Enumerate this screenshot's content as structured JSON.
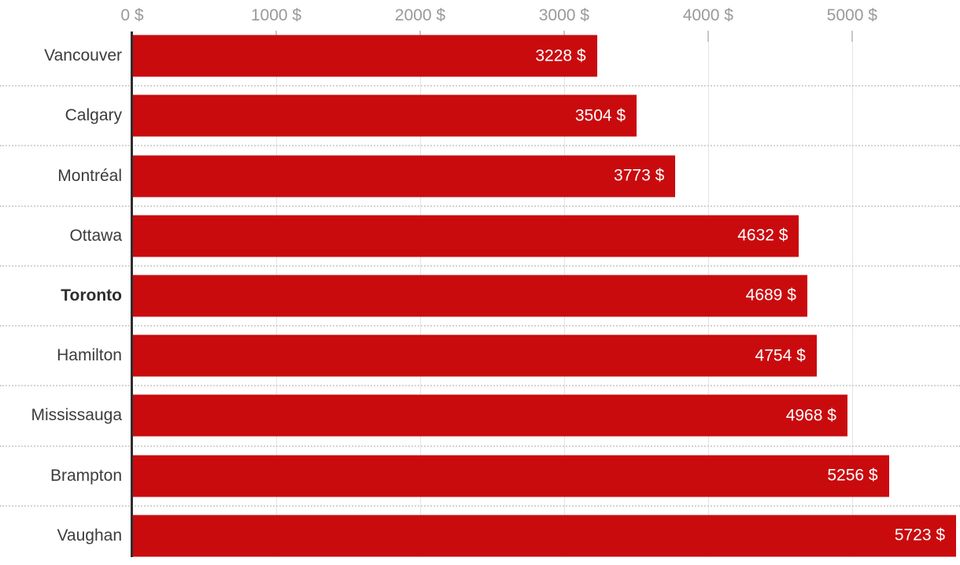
{
  "chart_data": {
    "type": "bar",
    "orientation": "horizontal",
    "title": "",
    "categories": [
      "Vancouver",
      "Calgary",
      "Montréal",
      "Ottawa",
      "Toronto",
      "Hamilton",
      "Mississauga",
      "Brampton",
      "Vaughan"
    ],
    "values": [
      3228,
      3504,
      3773,
      4632,
      4689,
      4754,
      4968,
      5256,
      5723
    ],
    "value_labels": [
      "3228 $",
      "3504 $",
      "3773 $",
      "4632 $",
      "4689 $",
      "4754 $",
      "4968 $",
      "5256 $",
      "5723 $"
    ],
    "emphasized_category": "Toronto",
    "x_axis": {
      "position": "top",
      "ticks": [
        0,
        1000,
        2000,
        3000,
        4000,
        5000
      ],
      "tick_labels": [
        "0 $",
        "1000 $",
        "2000 $",
        "3000 $",
        "4000 $",
        "5000 $"
      ],
      "min": 0,
      "max": 5750
    },
    "grid": true,
    "legend": null,
    "colors": {
      "bar": "#c90b0e",
      "bar_value_text": "#ffffff",
      "axis_label_text": "#9a9a9a",
      "category_text": "#3c3c3c",
      "zero_axis_line": "#2e2e2e",
      "gridline": "#e4e4e4",
      "row_separator": "#d4d4d4"
    }
  }
}
